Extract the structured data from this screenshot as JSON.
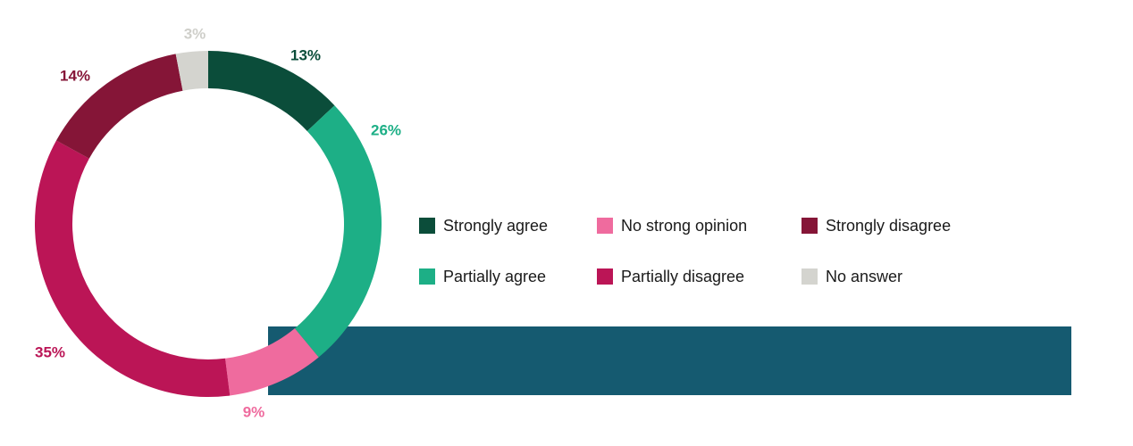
{
  "chart_data": {
    "type": "pie",
    "variant": "donut",
    "slices": [
      {
        "label": "Strongly agree",
        "value": 13,
        "display": "13%",
        "color": "#0b4d3a"
      },
      {
        "label": "Partially agree",
        "value": 26,
        "display": "26%",
        "color": "#1daf86"
      },
      {
        "label": "No strong opinion",
        "value": 9,
        "display": "9%",
        "color": "#ef6b9e"
      },
      {
        "label": "Partially disagree",
        "value": 35,
        "display": "35%",
        "color": "#bb1556"
      },
      {
        "label": "Strongly disagree",
        "value": 14,
        "display": "14%",
        "color": "#851537"
      },
      {
        "label": "No answer",
        "value": 3,
        "display": "3%",
        "color": "#d4d4cf"
      }
    ],
    "label_colors": [
      "#0b4d3a",
      "#1daf86",
      "#ef6b9e",
      "#bb1556",
      "#851537",
      "#cfcfca"
    ],
    "legend_placement": "right",
    "legend": [
      "Strongly agree",
      "No strong opinion",
      "Strongly disagree",
      "Partially agree",
      "Partially disagree",
      "No answer"
    ]
  },
  "band_color": "#155a70"
}
